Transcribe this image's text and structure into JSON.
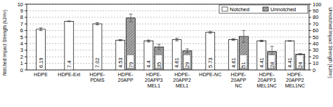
{
  "chart_data": {
    "type": "bar",
    "categories": [
      "HDPE",
      "HDPE-Ext",
      "HDPE-\nPDMS",
      "HDPE-\n20APP",
      "HDPE-\n20APP3\nMEL1",
      "HDPE-\n20APP2\nMEL1",
      "HDPE-NC",
      "HDPE-\n20APP\nNC",
      "HDPE-\n20APP3\nMEL1NC",
      "HDPE-\n20APP2\nMEL1NC"
    ],
    "series": [
      {
        "name": "Notched",
        "color": "#ffffff",
        "values": [
          6.19,
          7.4,
          7.02,
          4.53,
          4.4,
          4.61,
          5.73,
          4.61,
          4.41,
          4.41
        ],
        "errors": [
          0.2,
          0.05,
          0.15,
          0.08,
          0.15,
          0.18,
          0.12,
          0.12,
          0.1,
          0.05
        ]
      },
      {
        "name": "Unnotched",
        "color": "#a8a8a8",
        "axis": "y2",
        "values": [
          null,
          null,
          null,
          79,
          35,
          29,
          null,
          51,
          28,
          24
        ],
        "errors": [
          null,
          null,
          null,
          6,
          4,
          3,
          null,
          9,
          8,
          1
        ]
      }
    ],
    "y_label": "Notched Impact Strength (kJ/m²)",
    "y2_label": "Unnotched Impact Strength (kJ/m²)",
    "ylim": [
      0,
      10
    ],
    "yticks": [
      0,
      1,
      2,
      3,
      4,
      5,
      6,
      7,
      8,
      9,
      10
    ],
    "y2lim": [
      0,
      100
    ],
    "y2ticks": [
      0,
      10,
      20,
      30,
      40,
      50,
      60,
      70,
      80,
      90,
      100
    ],
    "grid": true,
    "legend": "upper right",
    "data_labels": true
  }
}
